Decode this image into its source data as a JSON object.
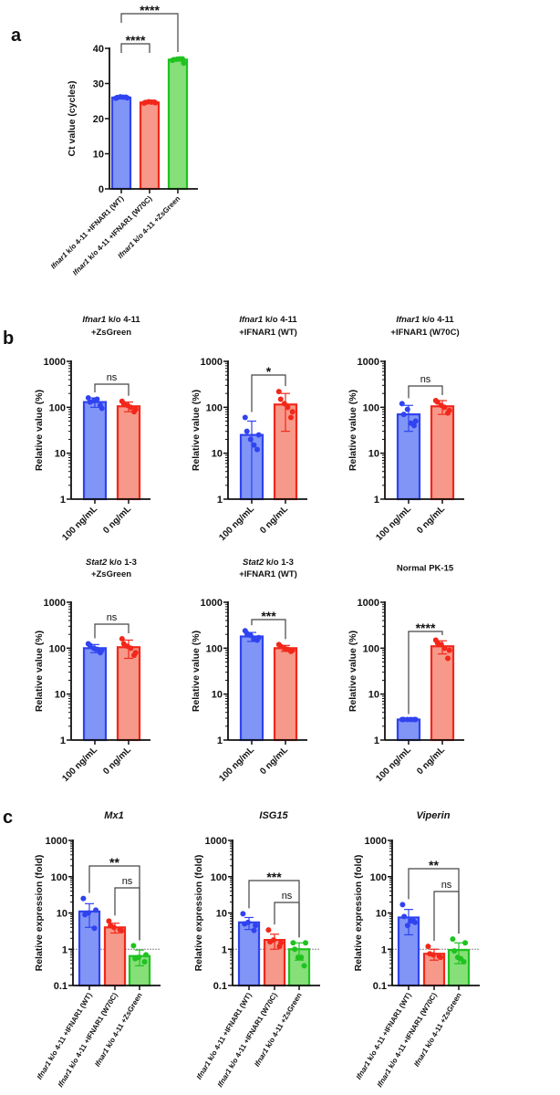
{
  "panel_labels": [
    "a",
    "b",
    "c"
  ],
  "colors": {
    "blue_stroke": "#2f43f0",
    "blue_fill": "#8095f6",
    "red_stroke": "#f2271a",
    "red_fill": "#f7998a",
    "green_stroke": "#1fc21f",
    "green_fill": "#86df79",
    "axis": "#111111",
    "bracket": "#444444",
    "refline": "#888888"
  },
  "chart_data": [
    {
      "type": "bar",
      "panel": "a",
      "title": null,
      "ylabel": "Ct value (cycles)",
      "scale": "linear",
      "ylim": [
        0,
        40
      ],
      "yticks": [
        "0",
        "10",
        "20",
        "30",
        "40"
      ],
      "categories": [
        {
          "italic": "Ifnar1",
          "text": " k/o 4-11 +IFNAR1 (WT)"
        },
        {
          "italic": "Ifnar1",
          "text": " k/o 4-11 +IFNAR1 (W70C)"
        },
        {
          "italic": "Ifnar1",
          "text": " k/o 4-11 +ZsGreen"
        }
      ],
      "colors": [
        "blue",
        "red",
        "green"
      ],
      "values": [
        26.0,
        24.6,
        36.8
      ],
      "errors": [
        0.3,
        0.3,
        0.4
      ],
      "points": [
        [
          25.8,
          26.1,
          26.2,
          25.9,
          26.0,
          26.1
        ],
        [
          24.4,
          24.7,
          24.8,
          24.5,
          24.6,
          24.7
        ],
        [
          36.6,
          37.0,
          36.9,
          35.8,
          36.8,
          37.0
        ]
      ],
      "significance": [
        {
          "from": 0,
          "to": 1,
          "label": "****"
        },
        {
          "from": 0,
          "to": 2,
          "label": "****"
        }
      ]
    },
    {
      "type": "bar",
      "panel": "b",
      "title": {
        "italic": "Ifnar1",
        "text": " k/o 4-11",
        "line2": "+ZsGreen"
      },
      "ylabel": "Relative value (%)",
      "scale": "log",
      "ylim": [
        1,
        1000
      ],
      "yticks": [
        "1",
        "10",
        "100",
        "1000"
      ],
      "categories": [
        {
          "italic": "",
          "text": "100 ng/mL"
        },
        {
          "italic": "",
          "text": "0 ng/mL"
        }
      ],
      "colors": [
        "blue",
        "red"
      ],
      "values": [
        130,
        105
      ],
      "errors": [
        30,
        25
      ],
      "points": [
        [
          160,
          110,
          140,
          95,
          130,
          150
        ],
        [
          135,
          80,
          110,
          90,
          120,
          100
        ]
      ],
      "significance": [
        {
          "from": 0,
          "to": 1,
          "label": "ns"
        }
      ]
    },
    {
      "type": "bar",
      "panel": "b",
      "title": {
        "italic": "Ifnar1",
        "text": " k/o 4-11",
        "line2": "+IFNAR1 (WT)"
      },
      "ylabel": "Relative value (%)",
      "scale": "log",
      "ylim": [
        1,
        1000
      ],
      "yticks": [
        "1",
        "10",
        "100",
        "1000"
      ],
      "categories": [
        {
          "italic": "",
          "text": "100 ng/mL"
        },
        {
          "italic": "",
          "text": "0 ng/mL"
        }
      ],
      "colors": [
        "blue",
        "red"
      ],
      "values": [
        25,
        115
      ],
      "errors": [
        25,
        85
      ],
      "points": [
        [
          60,
          12,
          20,
          25,
          30,
          15
        ],
        [
          220,
          60,
          120,
          80,
          150,
          100
        ]
      ],
      "significance": [
        {
          "from": 0,
          "to": 1,
          "label": "*"
        }
      ]
    },
    {
      "type": "bar",
      "panel": "b",
      "title": {
        "italic": "Ifnar1",
        "text": " k/o 4-11",
        "line2": "+IFNAR1 (W70C)"
      },
      "ylabel": "Relative value (%)",
      "scale": "log",
      "ylim": [
        1,
        1000
      ],
      "yticks": [
        "1",
        "10",
        "100",
        "1000"
      ],
      "categories": [
        {
          "italic": "",
          "text": "100 ng/mL"
        },
        {
          "italic": "",
          "text": "0 ng/mL"
        }
      ],
      "colors": [
        "blue",
        "red"
      ],
      "values": [
        70,
        105
      ],
      "errors": [
        40,
        35
      ],
      "points": [
        [
          120,
          40,
          90,
          50,
          70,
          45
        ],
        [
          140,
          75,
          110,
          85,
          130,
          100
        ]
      ],
      "significance": [
        {
          "from": 0,
          "to": 1,
          "label": "ns"
        }
      ]
    },
    {
      "type": "bar",
      "panel": "b",
      "title": {
        "italic": "Stat2",
        "text": " k/o 1-3",
        "line2": "+ZsGreen"
      },
      "ylabel": "Relative value (%)",
      "scale": "log",
      "ylim": [
        1,
        1000
      ],
      "yticks": [
        "1",
        "10",
        "100",
        "1000"
      ],
      "categories": [
        {
          "italic": "",
          "text": "100 ng/mL"
        },
        {
          "italic": "",
          "text": "0 ng/mL"
        }
      ],
      "colors": [
        "blue",
        "red"
      ],
      "values": [
        100,
        105
      ],
      "errors": [
        20,
        45
      ],
      "points": [
        [
          125,
          80,
          100,
          90,
          115,
          95
        ],
        [
          160,
          70,
          110,
          80,
          125,
          100
        ]
      ],
      "significance": [
        {
          "from": 0,
          "to": 1,
          "label": "ns"
        }
      ]
    },
    {
      "type": "bar",
      "panel": "b",
      "title": {
        "italic": "Stat2",
        "text": " k/o 1-3",
        "line2": "+IFNAR1 (WT)"
      },
      "ylabel": "Relative value (%)",
      "scale": "log",
      "ylim": [
        1,
        1000
      ],
      "yticks": [
        "1",
        "10",
        "100",
        "1000"
      ],
      "categories": [
        {
          "italic": "",
          "text": "100 ng/mL"
        },
        {
          "italic": "",
          "text": "0 ng/mL"
        }
      ],
      "colors": [
        "blue",
        "red"
      ],
      "values": [
        180,
        100
      ],
      "errors": [
        40,
        15
      ],
      "points": [
        [
          240,
          150,
          190,
          170,
          210,
          160
        ],
        [
          120,
          85,
          100,
          90,
          110,
          95
        ]
      ],
      "significance": [
        {
          "from": 0,
          "to": 1,
          "label": "***"
        }
      ]
    },
    {
      "type": "bar",
      "panel": "b",
      "title": {
        "italic": "",
        "text": "Normal PK-15",
        "line2": ""
      },
      "ylabel": "Relative value (%)",
      "scale": "log",
      "ylim": [
        1,
        1000
      ],
      "yticks": [
        "1",
        "10",
        "100",
        "1000"
      ],
      "categories": [
        {
          "italic": "",
          "text": "100 ng/mL"
        },
        {
          "italic": "",
          "text": "0 ng/mL"
        }
      ],
      "colors": [
        "blue",
        "red"
      ],
      "values": [
        2.8,
        110
      ],
      "errors": [
        0,
        35
      ],
      "points": [
        [
          2.8,
          2.8,
          2.8,
          2.8,
          2.8,
          2.8
        ],
        [
          150,
          60,
          120,
          90,
          130,
          100
        ]
      ],
      "significance": [
        {
          "from": 0,
          "to": 1,
          "label": "****"
        }
      ]
    },
    {
      "type": "bar",
      "panel": "c",
      "title": {
        "italic": "Mx1",
        "text": "",
        "line2": ""
      },
      "ylabel": "Relative expression (fold)",
      "scale": "log",
      "ylim": [
        0.1,
        1000
      ],
      "refline": 1,
      "yticks": [
        "0.1",
        "1",
        "10",
        "100",
        "1000"
      ],
      "categories": [
        {
          "italic": "Ifnar1",
          "text": " k/o 4-11 +IFNAR1 (WT)"
        },
        {
          "italic": "Ifnar1",
          "text": " k/o 4-11 +IFNAR1 (W70C)"
        },
        {
          "italic": "Ifnar1",
          "text": " k/o 4-11 +ZsGreen"
        }
      ],
      "colors": [
        "blue",
        "red",
        "green"
      ],
      "values": [
        11,
        4.0,
        0.65
      ],
      "errors": [
        7,
        1.2,
        0.3
      ],
      "points": [
        [
          25,
          3.8,
          10,
          12,
          9
        ],
        [
          6,
          3.5,
          4,
          3.2,
          4.5
        ],
        [
          1.25,
          0.45,
          0.6,
          0.7,
          0.55
        ]
      ],
      "significance": [
        {
          "from": 0,
          "to": 2,
          "label": "**"
        },
        {
          "from": 1,
          "to": 2,
          "label": "ns"
        }
      ]
    },
    {
      "type": "bar",
      "panel": "c",
      "title": {
        "italic": "ISG15",
        "text": "",
        "line2": ""
      },
      "ylabel": "Relative expression (fold)",
      "scale": "log",
      "ylim": [
        0.1,
        1000
      ],
      "refline": 1,
      "yticks": [
        "0.1",
        "1",
        "10",
        "100",
        "1000"
      ],
      "categories": [
        {
          "italic": "Ifnar1",
          "text": " k/o 4-11 +IFNAR1 (WT)"
        },
        {
          "italic": "Ifnar1",
          "text": " k/o 4-11 +IFNAR1 (W70C)"
        },
        {
          "italic": "Ifnar1",
          "text": " k/o 4-11 +ZsGreen"
        }
      ],
      "colors": [
        "blue",
        "red",
        "green"
      ],
      "values": [
        5.5,
        1.8,
        1.0
      ],
      "errors": [
        2,
        0.8,
        0.5
      ],
      "points": [
        [
          9.5,
          3.3,
          5.5,
          4.5,
          5
        ],
        [
          3.4,
          1.2,
          1.8,
          1.5,
          1.6
        ],
        [
          1.5,
          0.35,
          0.6,
          1.5,
          1.0,
          0.6
        ]
      ],
      "significance": [
        {
          "from": 0,
          "to": 2,
          "label": "***"
        },
        {
          "from": 1,
          "to": 2,
          "label": "ns"
        }
      ]
    },
    {
      "type": "bar",
      "panel": "c",
      "title": {
        "italic": "Viperin",
        "text": "",
        "line2": ""
      },
      "ylabel": "Relative expression (fold)",
      "scale": "log",
      "ylim": [
        0.1,
        1000
      ],
      "refline": 1,
      "yticks": [
        "0.1",
        "1",
        "10",
        "100",
        "1000"
      ],
      "categories": [
        {
          "italic": "Ifnar1",
          "text": " k/o 4-11 +IFNAR1 (WT)"
        },
        {
          "italic": "Ifnar1",
          "text": " k/o 4-11 +IFNAR1 (W70C)"
        },
        {
          "italic": "Ifnar1",
          "text": " k/o 4-11 +ZsGreen"
        }
      ],
      "colors": [
        "blue",
        "red",
        "green"
      ],
      "values": [
        7.5,
        0.75,
        0.95
      ],
      "errors": [
        5,
        0.25,
        0.55
      ],
      "points": [
        [
          17,
          6,
          4.5,
          5.5,
          8,
          6
        ],
        [
          1.2,
          0.65,
          0.7,
          0.6,
          0.75
        ],
        [
          1.9,
          0.45,
          0.6,
          1.5,
          0.9,
          0.55
        ]
      ],
      "significance": [
        {
          "from": 0,
          "to": 2,
          "label": "**"
        },
        {
          "from": 1,
          "to": 2,
          "label": "ns"
        }
      ]
    }
  ]
}
